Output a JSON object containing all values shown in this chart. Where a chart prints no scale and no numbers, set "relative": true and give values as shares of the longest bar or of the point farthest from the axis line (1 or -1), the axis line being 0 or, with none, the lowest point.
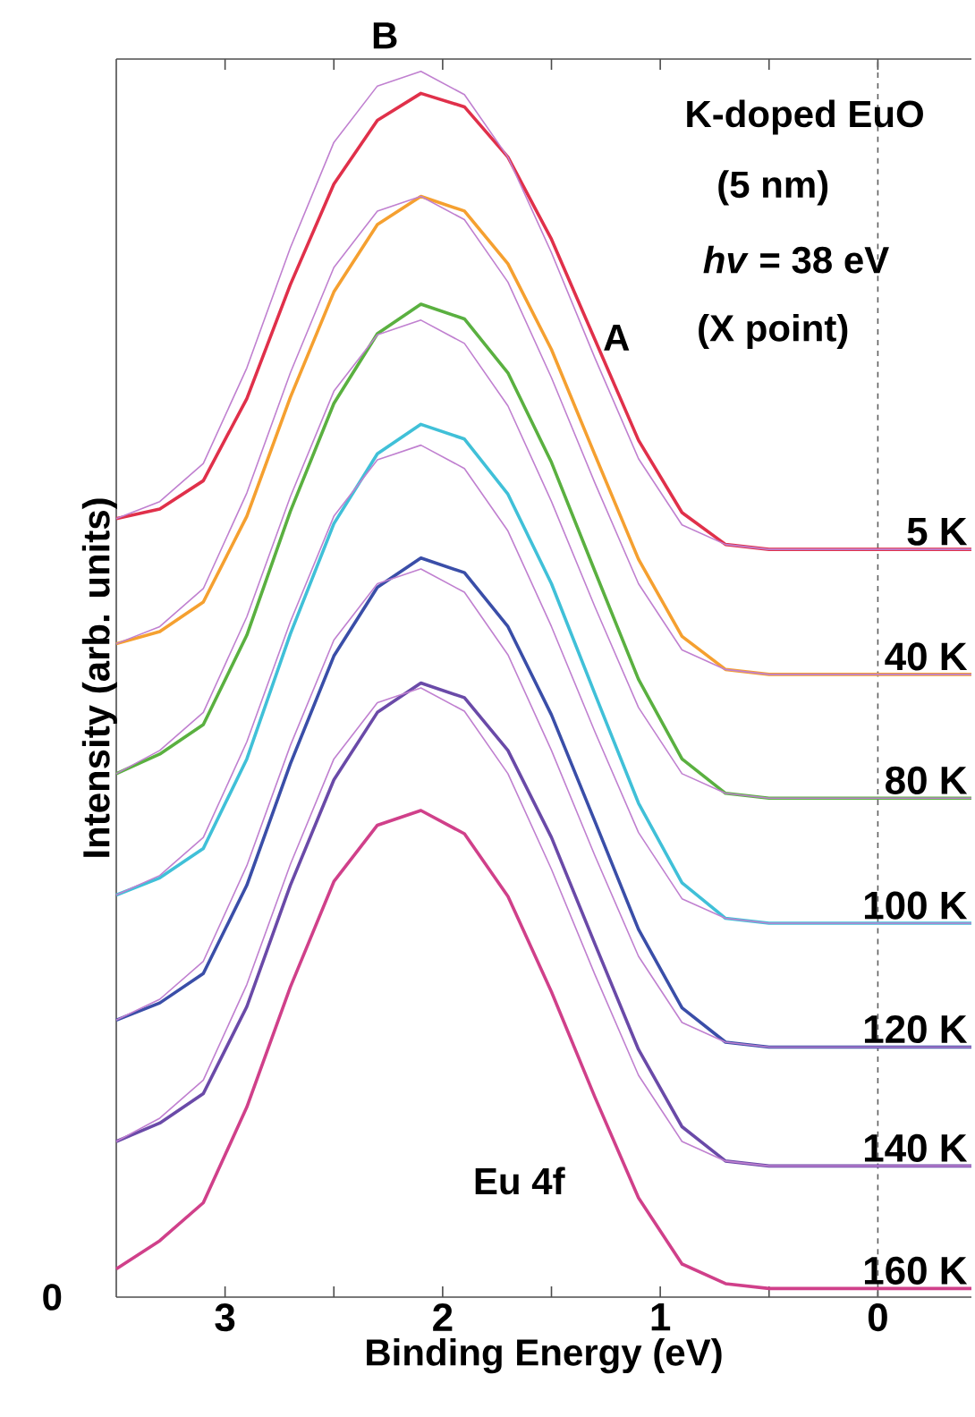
{
  "chart_data": {
    "type": "line",
    "relative": true,
    "xlabel": "Binding Energy (eV)",
    "ylabel": "Intensity (arb. units)",
    "x": [
      3.5,
      3.3,
      3.1,
      2.9,
      2.7,
      2.5,
      2.3,
      2.1,
      1.9,
      1.7,
      1.5,
      1.3,
      1.1,
      0.9,
      0.7,
      0.5,
      -0.43
    ],
    "xlim": [
      3.5,
      -0.43
    ],
    "xticks": [
      3,
      {
        "value": 2.5,
        "label": null
      },
      2,
      {
        "value": 1.5,
        "label": null
      },
      1,
      {
        "value": 0.5,
        "label": null
      },
      0
    ],
    "ref_lines": [
      {
        "axis": "x",
        "value": 0,
        "line_style": "dashed",
        "color": "#606060"
      }
    ],
    "annotations": [
      "K-doped EuO",
      "(5 nm)",
      "*hv* = 38 eV",
      "(X point)",
      "A",
      "B",
      "Eu 4f",
      "0"
    ],
    "series": [
      {
        "name": "5 K",
        "color": "#e0304a",
        "values": [
          0.635,
          0.643,
          0.666,
          0.733,
          0.826,
          0.908,
          0.96,
          0.982,
          0.971,
          0.93,
          0.863,
          0.781,
          0.699,
          0.64,
          0.614,
          0.61,
          0.61
        ]
      },
      {
        "color": "#c080d0",
        "values": [
          0.635,
          0.649,
          0.68,
          0.758,
          0.856,
          0.942,
          0.988,
          1.0,
          0.981,
          0.93,
          0.852,
          0.766,
          0.684,
          0.63,
          0.614,
          0.61,
          0.61
        ]
      },
      {
        "name": "40 K",
        "color": "#f5a030",
        "values": [
          0.533,
          0.543,
          0.567,
          0.637,
          0.734,
          0.82,
          0.875,
          0.898,
          0.886,
          0.843,
          0.773,
          0.687,
          0.602,
          0.539,
          0.512,
          0.508,
          0.508
        ]
      },
      {
        "color": "#c080d0",
        "values": [
          0.533,
          0.547,
          0.578,
          0.656,
          0.754,
          0.84,
          0.886,
          0.898,
          0.879,
          0.828,
          0.75,
          0.664,
          0.582,
          0.528,
          0.512,
          0.508,
          0.508
        ]
      },
      {
        "name": "80 K",
        "color": "#5ab040",
        "values": [
          0.427,
          0.443,
          0.467,
          0.54,
          0.641,
          0.729,
          0.786,
          0.81,
          0.798,
          0.754,
          0.681,
          0.592,
          0.504,
          0.439,
          0.411,
          0.407,
          0.407
        ]
      },
      {
        "color": "#c080d0",
        "values": [
          0.427,
          0.446,
          0.477,
          0.555,
          0.653,
          0.739,
          0.785,
          0.797,
          0.778,
          0.727,
          0.649,
          0.563,
          0.481,
          0.427,
          0.411,
          0.407,
          0.407
        ]
      },
      {
        "name": "100 K",
        "color": "#40c0d8",
        "values": [
          0.328,
          0.342,
          0.366,
          0.439,
          0.541,
          0.631,
          0.688,
          0.712,
          0.7,
          0.655,
          0.582,
          0.492,
          0.403,
          0.338,
          0.309,
          0.305,
          0.305
        ]
      },
      {
        "color": "#c080d0",
        "values": [
          0.328,
          0.344,
          0.375,
          0.453,
          0.551,
          0.637,
          0.683,
          0.695,
          0.676,
          0.625,
          0.547,
          0.461,
          0.379,
          0.325,
          0.309,
          0.305,
          0.305
        ]
      },
      {
        "name": "120 K",
        "color": "#3a4ea8",
        "values": [
          0.226,
          0.24,
          0.264,
          0.336,
          0.435,
          0.523,
          0.579,
          0.603,
          0.591,
          0.547,
          0.475,
          0.388,
          0.3,
          0.236,
          0.208,
          0.204,
          0.204
        ]
      },
      {
        "color": "#c080d0",
        "values": [
          0.226,
          0.243,
          0.274,
          0.352,
          0.45,
          0.536,
          0.582,
          0.594,
          0.575,
          0.524,
          0.446,
          0.36,
          0.278,
          0.224,
          0.208,
          0.204,
          0.204
        ]
      },
      {
        "name": "140 K",
        "color": "#6a4aa8",
        "values": [
          0.127,
          0.142,
          0.166,
          0.237,
          0.336,
          0.422,
          0.477,
          0.501,
          0.489,
          0.446,
          0.375,
          0.288,
          0.202,
          0.139,
          0.111,
          0.107,
          0.107
        ]
      },
      {
        "color": "#c080d0",
        "values": [
          0.127,
          0.146,
          0.177,
          0.255,
          0.353,
          0.439,
          0.485,
          0.497,
          0.478,
          0.427,
          0.349,
          0.263,
          0.181,
          0.127,
          0.111,
          0.107,
          0.107
        ]
      },
      {
        "name": "160 K",
        "color": "#d0408a",
        "values": [
          0.023,
          0.046,
          0.077,
          0.155,
          0.253,
          0.339,
          0.385,
          0.397,
          0.378,
          0.327,
          0.249,
          0.163,
          0.081,
          0.027,
          0.011,
          0.007,
          0.007
        ]
      }
    ]
  }
}
